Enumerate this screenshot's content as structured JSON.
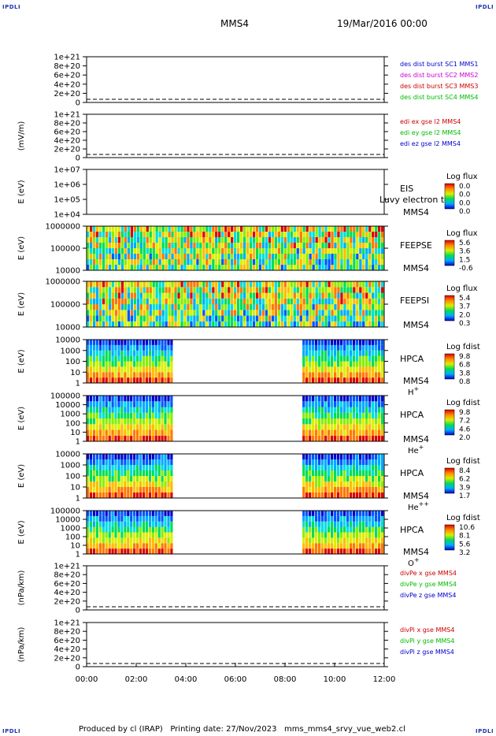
{
  "corner_tag": "IPDLI",
  "header": {
    "spacecraft": "MMS4",
    "datetime": "19/Mar/2016 00:00"
  },
  "footer": "Produced by cl (IRAP)   Printing date: 27/Nov/2023   mms_mms4_srvy_vue_web2.cl",
  "colors": {
    "ax": "#000000"
  },
  "chart_data": [
    {
      "type": "line",
      "panel_id": "desdist",
      "ylabel": "",
      "ticks": [
        "0",
        "2e+20",
        "4e+20",
        "6e+20",
        "8e+20",
        "1e+21"
      ],
      "series": [
        {
          "name": "des dist burst SC1 MMS1",
          "color": "#0000cc"
        },
        {
          "name": "des dist burst SC2 MMS2",
          "color": "#cc00cc"
        },
        {
          "name": "des dist burst SC3 MMS3",
          "color": "#cc0000"
        },
        {
          "name": "des dist burst SC4 MMS4",
          "color": "#00bb00"
        }
      ],
      "values_all_zero": true
    },
    {
      "type": "line",
      "panel_id": "edi",
      "ylabel": "(mV/m)",
      "ticks": [
        "0",
        "2e+20",
        "4e+20",
        "6e+20",
        "8e+20",
        "1e+21"
      ],
      "series": [
        {
          "name": "edi ex gse l2 MMS4",
          "color": "#cc0000"
        },
        {
          "name": "edi ey gse l2 MMS4",
          "color": "#00bb00"
        },
        {
          "name": "edi ez gse l2 MMS4",
          "color": "#0000cc"
        }
      ],
      "values_all_zero": true
    },
    {
      "type": "heatmap",
      "panel_id": "eis",
      "ylabel": "E (eV)",
      "ticks": [
        "1e+04",
        "1e+05",
        "1e+06",
        "1e+07"
      ],
      "right": [
        "EIS",
        "MMS4"
      ],
      "overlay": "Luvy electron to",
      "cb_title": "Log flux",
      "cb_ticks": [
        "0.0",
        "0.0",
        "0.0",
        "0.0"
      ],
      "coverage": []
    },
    {
      "type": "heatmap",
      "panel_id": "feepse",
      "ylabel": "E (eV)",
      "ticks": [
        "10000",
        "100000",
        "1000000"
      ],
      "right": [
        "FEEPSE",
        "MMS4"
      ],
      "cb_title": "Log flux",
      "cb_ticks": [
        "5.6",
        "3.6",
        "1.5",
        "-0.6"
      ],
      "coverage": [
        [
          0,
          12
        ]
      ]
    },
    {
      "type": "heatmap",
      "panel_id": "feepsi",
      "ylabel": "E (eV)",
      "ticks": [
        "10000",
        "100000",
        "1000000"
      ],
      "right": [
        "FEEPSI",
        "MMS4"
      ],
      "cb_title": "Log flux",
      "cb_ticks": [
        "5.4",
        "3.7",
        "2.0",
        "0.3"
      ],
      "coverage": [
        [
          0,
          12
        ]
      ]
    },
    {
      "type": "heatmap",
      "panel_id": "hpca_h",
      "ylabel": "E (eV)",
      "ticks": [
        "1",
        "10",
        "100",
        "1000",
        "10000"
      ],
      "right": [
        "HPCA",
        "MMS4"
      ],
      "species": "H",
      "species_sup": "+",
      "cb_title": "Log fdist",
      "cb_ticks": [
        "9.8",
        "6.8",
        "3.8",
        "0.8"
      ],
      "coverage": [
        [
          0,
          3.5
        ],
        [
          8.7,
          12
        ]
      ]
    },
    {
      "type": "heatmap",
      "panel_id": "hpca_he",
      "ylabel": "E (eV)",
      "ticks": [
        "1",
        "10",
        "100",
        "1000",
        "10000",
        "100000"
      ],
      "right": [
        "HPCA",
        "MMS4"
      ],
      "species": "He",
      "species_sup": "+",
      "cb_title": "Log fdist",
      "cb_ticks": [
        "9.8",
        "7.2",
        "4.6",
        "2.0"
      ],
      "coverage": [
        [
          0,
          3.5
        ],
        [
          8.7,
          12
        ]
      ]
    },
    {
      "type": "heatmap",
      "panel_id": "hpca_hepp",
      "ylabel": "E (eV)",
      "ticks": [
        "1",
        "10",
        "100",
        "1000",
        "10000"
      ],
      "right": [
        "HPCA",
        "MMS4"
      ],
      "species": "He",
      "species_sup": "++",
      "cb_title": "Log fdist",
      "cb_ticks": [
        "8.4",
        "6.2",
        "3.9",
        "1.7"
      ],
      "coverage": [
        [
          0,
          3.5
        ],
        [
          8.7,
          12
        ]
      ]
    },
    {
      "type": "heatmap",
      "panel_id": "hpca_o",
      "ylabel": "E (eV)",
      "ticks": [
        "1",
        "10",
        "100",
        "1000",
        "10000",
        "100000"
      ],
      "right": [
        "HPCA",
        "MMS4"
      ],
      "species": "O",
      "species_sup": "+",
      "cb_title": "Log fdist",
      "cb_ticks": [
        "10.6",
        "8.1",
        "5.6",
        "3.2"
      ],
      "coverage": [
        [
          0,
          3.5
        ],
        [
          8.7,
          12
        ]
      ]
    },
    {
      "type": "line",
      "panel_id": "divpe",
      "ylabel": "(nPa/km)",
      "ticks": [
        "0",
        "2e+20",
        "4e+20",
        "6e+20",
        "8e+20",
        "1e+21"
      ],
      "series": [
        {
          "name": "divPe x gse MMS4",
          "color": "#cc0000"
        },
        {
          "name": "divPe y gse MMS4",
          "color": "#00bb00"
        },
        {
          "name": "divPe z gse MMS4",
          "color": "#0000cc"
        }
      ],
      "values_all_zero": true
    },
    {
      "type": "line",
      "panel_id": "divpi",
      "ylabel": "(nPa/km)",
      "ticks": [
        "0",
        "2e+20",
        "4e+20",
        "6e+20",
        "8e+20",
        "1e+21"
      ],
      "series": [
        {
          "name": "divPi x gse MMS4",
          "color": "#cc0000"
        },
        {
          "name": "divPi y gse MMS4",
          "color": "#00bb00"
        },
        {
          "name": "divPi z gse MMS4",
          "color": "#0000cc"
        }
      ],
      "values_all_zero": true
    }
  ],
  "x_axis": {
    "ticks": [
      "00:00",
      "02:00",
      "04:00",
      "06:00",
      "08:00",
      "10:00",
      "12:00"
    ],
    "xlim_hours": [
      0,
      12
    ]
  }
}
